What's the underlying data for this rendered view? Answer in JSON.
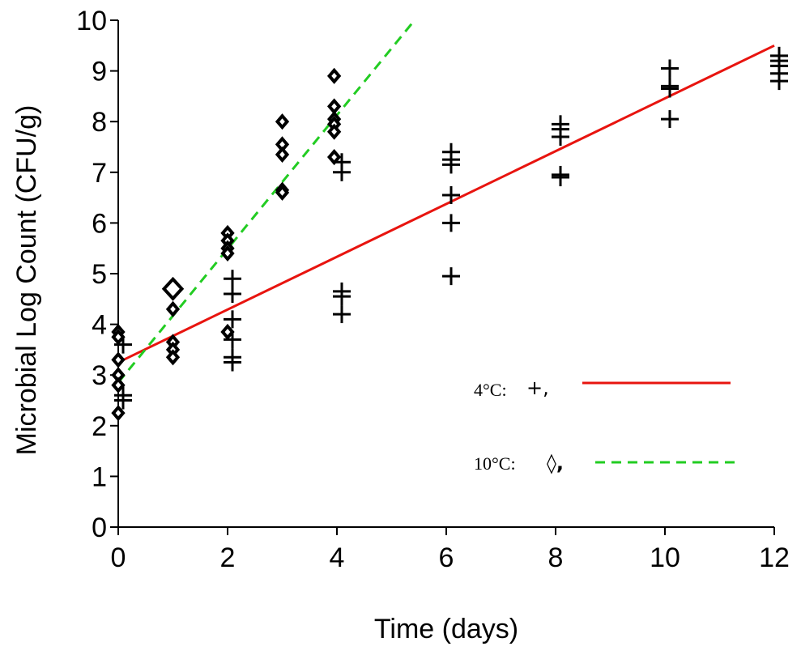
{
  "chart_data": {
    "type": "scatter",
    "xlabel": "Time (days)",
    "ylabel": "Microbial Log Count (CFU/g)",
    "xlim": [
      0,
      12
    ],
    "ylim": [
      0,
      10
    ],
    "xticks": [
      "0",
      "2",
      "4",
      "6",
      "8",
      "10",
      "12"
    ],
    "yticks": [
      "0",
      "1",
      "2",
      "3",
      "4",
      "5",
      "6",
      "7",
      "8",
      "9",
      "10"
    ],
    "grid": false,
    "legend_position": "bottom-right",
    "series": [
      {
        "name": "4°C:",
        "marker_glyph": "+,",
        "marker": "plus",
        "color": "#000000",
        "points": [
          [
            0,
            3.6
          ],
          [
            0,
            2.6
          ],
          [
            0,
            2.5
          ],
          [
            2,
            4.9
          ],
          [
            2,
            4.6
          ],
          [
            2,
            4.1
          ],
          [
            2,
            3.7
          ],
          [
            2,
            3.35
          ],
          [
            2,
            3.25
          ],
          [
            4,
            7.2
          ],
          [
            4,
            7.0
          ],
          [
            4,
            4.65
          ],
          [
            4,
            4.55
          ],
          [
            4,
            4.2
          ],
          [
            6,
            7.4
          ],
          [
            6,
            7.25
          ],
          [
            6,
            7.15
          ],
          [
            6,
            6.55
          ],
          [
            6,
            6.0
          ],
          [
            6,
            4.95
          ],
          [
            8,
            7.95
          ],
          [
            8,
            7.85
          ],
          [
            8,
            7.7
          ],
          [
            8,
            6.95
          ],
          [
            8,
            6.9
          ],
          [
            10,
            9.05
          ],
          [
            10,
            8.7
          ],
          [
            10,
            8.65
          ],
          [
            10,
            8.05
          ],
          [
            12,
            9.3
          ],
          [
            12,
            9.2
          ],
          [
            12,
            9.1
          ],
          [
            12,
            8.95
          ],
          [
            12,
            8.8
          ]
        ],
        "fit": {
          "x": [
            0,
            12
          ],
          "y": [
            3.25,
            9.5
          ],
          "color": "#e8140f",
          "dash": "solid"
        }
      },
      {
        "name": "10°C:",
        "marker_glyph": "◊,",
        "marker": "diamond",
        "color": "#000000",
        "points": [
          [
            0,
            3.85
          ],
          [
            0,
            3.75
          ],
          [
            0,
            3.3
          ],
          [
            0,
            3.0
          ],
          [
            0,
            2.8
          ],
          [
            0,
            2.25
          ],
          [
            1,
            4.3
          ],
          [
            1,
            3.65
          ],
          [
            1,
            3.5
          ],
          [
            1,
            3.35
          ],
          [
            2,
            5.8
          ],
          [
            2,
            5.65
          ],
          [
            2,
            5.5
          ],
          [
            2,
            5.4
          ],
          [
            2,
            3.85
          ],
          [
            3,
            8.0
          ],
          [
            3,
            7.55
          ],
          [
            3,
            7.35
          ],
          [
            3,
            6.65
          ],
          [
            3,
            6.6
          ],
          [
            3.95,
            8.9
          ],
          [
            3.95,
            8.3
          ],
          [
            3.95,
            8.05
          ],
          [
            3.95,
            7.95
          ],
          [
            3.95,
            7.8
          ],
          [
            3.95,
            7.3
          ]
        ],
        "outlier_points": [
          [
            1,
            4.7
          ]
        ],
        "fit": {
          "x": [
            0,
            5.42
          ],
          "y": [
            2.85,
            10
          ],
          "color": "#22cc22",
          "dash": "dashed"
        }
      }
    ]
  }
}
